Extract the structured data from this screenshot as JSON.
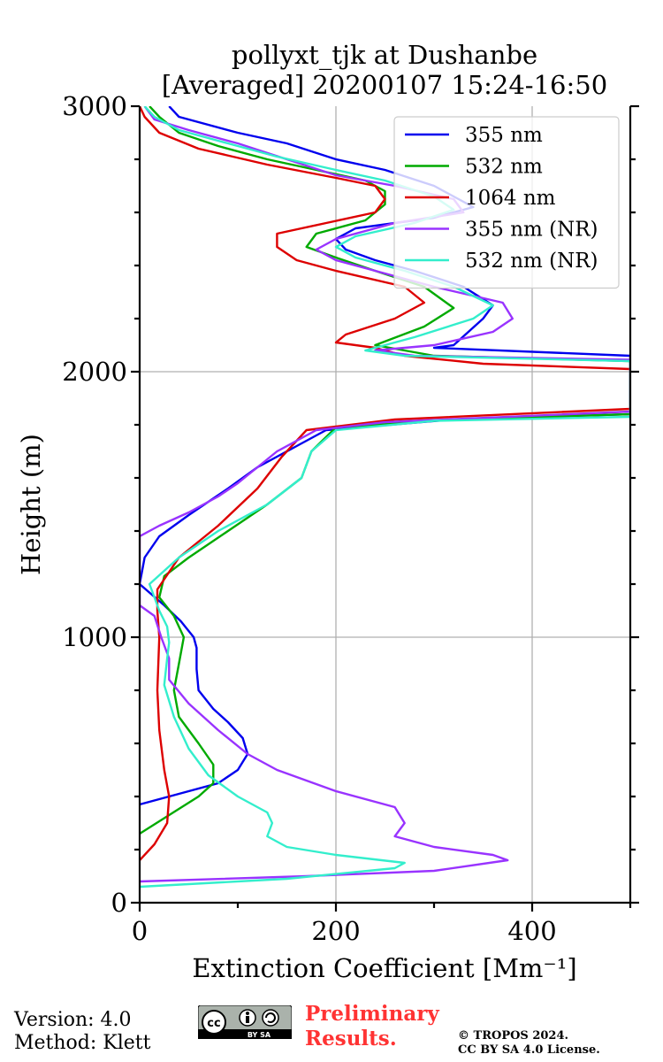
{
  "chart_data": {
    "type": "line",
    "title": "pollyxt_tjk at Dushanbe",
    "subtitle": "[Averaged] 20200107 15:24-16:50",
    "xlabel": "Extinction Coefficient [Mm⁻¹]",
    "ylabel": "Height (m)",
    "xlim": [
      0,
      500
    ],
    "ylim": [
      0,
      3000
    ],
    "xticks": [
      0,
      200,
      400
    ],
    "yticks": [
      0,
      1000,
      2000,
      3000
    ],
    "grid": true,
    "legend_position": "top-right",
    "series": [
      {
        "name": "355 nm",
        "color": "#0000ee",
        "points": [
          [
            0,
            370
          ],
          [
            40,
            410
          ],
          [
            80,
            450
          ],
          [
            100,
            500
          ],
          [
            110,
            560
          ],
          [
            105,
            620
          ],
          [
            90,
            680
          ],
          [
            75,
            730
          ],
          [
            60,
            800
          ],
          [
            58,
            880
          ],
          [
            58,
            960
          ],
          [
            55,
            1000
          ],
          [
            42,
            1060
          ],
          [
            25,
            1120
          ],
          [
            0,
            1200
          ],
          [
            0,
            1200
          ],
          [
            5,
            1300
          ],
          [
            20,
            1380
          ],
          [
            50,
            1460
          ],
          [
            90,
            1560
          ],
          [
            120,
            1640
          ],
          [
            160,
            1720
          ],
          [
            190,
            1780
          ],
          [
            320,
            1820
          ],
          [
            500,
            1840
          ],
          [
            500,
            2060
          ],
          [
            300,
            2090
          ],
          [
            320,
            2100
          ],
          [
            350,
            2200
          ],
          [
            360,
            2250
          ],
          [
            330,
            2320
          ],
          [
            280,
            2380
          ],
          [
            240,
            2420
          ],
          [
            210,
            2460
          ],
          [
            200,
            2500
          ],
          [
            220,
            2540
          ],
          [
            300,
            2580
          ],
          [
            340,
            2620
          ],
          [
            300,
            2700
          ],
          [
            250,
            2760
          ],
          [
            200,
            2800
          ],
          [
            150,
            2860
          ],
          [
            100,
            2900
          ],
          [
            40,
            2960
          ],
          [
            30,
            3000
          ]
        ]
      },
      {
        "name": "532 nm",
        "color": "#00aa00",
        "points": [
          [
            0,
            260
          ],
          [
            30,
            330
          ],
          [
            60,
            400
          ],
          [
            75,
            450
          ],
          [
            75,
            520
          ],
          [
            60,
            600
          ],
          [
            40,
            700
          ],
          [
            35,
            800
          ],
          [
            40,
            900
          ],
          [
            45,
            1000
          ],
          [
            35,
            1080
          ],
          [
            20,
            1150
          ],
          [
            25,
            1230
          ],
          [
            50,
            1300
          ],
          [
            90,
            1400
          ],
          [
            130,
            1500
          ],
          [
            165,
            1600
          ],
          [
            175,
            1700
          ],
          [
            200,
            1790
          ],
          [
            320,
            1820
          ],
          [
            500,
            1840
          ],
          [
            500,
            2040
          ],
          [
            300,
            2060
          ],
          [
            240,
            2100
          ],
          [
            290,
            2170
          ],
          [
            320,
            2240
          ],
          [
            290,
            2320
          ],
          [
            240,
            2380
          ],
          [
            200,
            2430
          ],
          [
            170,
            2470
          ],
          [
            180,
            2520
          ],
          [
            230,
            2570
          ],
          [
            250,
            2630
          ],
          [
            250,
            2680
          ],
          [
            230,
            2720
          ],
          [
            180,
            2760
          ],
          [
            130,
            2800
          ],
          [
            80,
            2850
          ],
          [
            40,
            2900
          ],
          [
            20,
            2960
          ],
          [
            10,
            3000
          ]
        ]
      },
      {
        "name": "1064 nm",
        "color": "#dd0000",
        "points": [
          [
            0,
            160
          ],
          [
            15,
            220
          ],
          [
            28,
            300
          ],
          [
            30,
            400
          ],
          [
            25,
            500
          ],
          [
            20,
            650
          ],
          [
            18,
            800
          ],
          [
            20,
            1000
          ],
          [
            18,
            1100
          ],
          [
            18,
            1180
          ],
          [
            40,
            1300
          ],
          [
            80,
            1420
          ],
          [
            120,
            1560
          ],
          [
            145,
            1680
          ],
          [
            170,
            1780
          ],
          [
            260,
            1820
          ],
          [
            500,
            1860
          ],
          [
            500,
            2010
          ],
          [
            350,
            2030
          ],
          [
            270,
            2060
          ],
          [
            240,
            2090
          ],
          [
            200,
            2110
          ],
          [
            210,
            2140
          ],
          [
            260,
            2200
          ],
          [
            290,
            2260
          ],
          [
            270,
            2320
          ],
          [
            200,
            2380
          ],
          [
            160,
            2420
          ],
          [
            140,
            2470
          ],
          [
            140,
            2520
          ],
          [
            190,
            2560
          ],
          [
            240,
            2600
          ],
          [
            250,
            2650
          ],
          [
            240,
            2700
          ],
          [
            200,
            2730
          ],
          [
            130,
            2780
          ],
          [
            60,
            2840
          ],
          [
            20,
            2900
          ],
          [
            5,
            2960
          ],
          [
            0,
            3000
          ]
        ]
      },
      {
        "name": "355 nm (NR)",
        "color": "#9933ff",
        "points": [
          [
            0,
            80
          ],
          [
            170,
            100
          ],
          [
            300,
            120
          ],
          [
            375,
            160
          ],
          [
            360,
            180
          ],
          [
            300,
            210
          ],
          [
            260,
            250
          ],
          [
            270,
            300
          ],
          [
            260,
            360
          ],
          [
            200,
            420
          ],
          [
            140,
            500
          ],
          [
            110,
            560
          ],
          [
            80,
            650
          ],
          [
            50,
            750
          ],
          [
            30,
            840
          ],
          [
            30,
            920
          ],
          [
            22,
            1000
          ],
          [
            15,
            1080
          ],
          [
            0,
            1120
          ],
          [
            0,
            1380
          ],
          [
            20,
            1420
          ],
          [
            50,
            1470
          ],
          [
            80,
            1530
          ],
          [
            100,
            1580
          ],
          [
            120,
            1640
          ],
          [
            140,
            1700
          ],
          [
            180,
            1780
          ],
          [
            250,
            1810
          ],
          [
            500,
            1850
          ],
          [
            500,
            2045
          ],
          [
            280,
            2060
          ],
          [
            240,
            2080
          ],
          [
            300,
            2100
          ],
          [
            360,
            2150
          ],
          [
            380,
            2200
          ],
          [
            370,
            2260
          ],
          [
            300,
            2320
          ],
          [
            240,
            2380
          ],
          [
            200,
            2420
          ],
          [
            180,
            2460
          ],
          [
            200,
            2500
          ],
          [
            260,
            2560
          ],
          [
            330,
            2600
          ],
          [
            320,
            2650
          ],
          [
            260,
            2700
          ],
          [
            200,
            2740
          ],
          [
            150,
            2800
          ],
          [
            100,
            2860
          ],
          [
            50,
            2910
          ],
          [
            15,
            2950
          ],
          [
            5,
            3000
          ]
        ]
      },
      {
        "name": "532 nm (NR)",
        "color": "#33eecc",
        "points": [
          [
            0,
            60
          ],
          [
            150,
            90
          ],
          [
            260,
            130
          ],
          [
            270,
            150
          ],
          [
            200,
            180
          ],
          [
            150,
            210
          ],
          [
            130,
            250
          ],
          [
            135,
            300
          ],
          [
            130,
            340
          ],
          [
            100,
            400
          ],
          [
            70,
            480
          ],
          [
            50,
            580
          ],
          [
            35,
            700
          ],
          [
            25,
            820
          ],
          [
            28,
            920
          ],
          [
            30,
            980
          ],
          [
            28,
            1040
          ],
          [
            20,
            1100
          ],
          [
            15,
            1150
          ],
          [
            10,
            1200
          ],
          [
            40,
            1300
          ],
          [
            80,
            1400
          ],
          [
            130,
            1500
          ],
          [
            165,
            1600
          ],
          [
            175,
            1700
          ],
          [
            200,
            1780
          ],
          [
            300,
            1815
          ],
          [
            500,
            1830
          ],
          [
            500,
            2040
          ],
          [
            270,
            2060
          ],
          [
            230,
            2080
          ],
          [
            280,
            2130
          ],
          [
            340,
            2200
          ],
          [
            360,
            2250
          ],
          [
            320,
            2320
          ],
          [
            270,
            2380
          ],
          [
            220,
            2430
          ],
          [
            200,
            2470
          ],
          [
            220,
            2510
          ],
          [
            280,
            2560
          ],
          [
            320,
            2610
          ],
          [
            300,
            2660
          ],
          [
            250,
            2720
          ],
          [
            200,
            2760
          ],
          [
            140,
            2810
          ],
          [
            90,
            2860
          ],
          [
            40,
            2910
          ],
          [
            15,
            2960
          ],
          [
            5,
            3000
          ]
        ]
      }
    ]
  },
  "footer": {
    "version": "Version: 4.0",
    "method": "Method: Klett",
    "prelim_line1": "Preliminary",
    "prelim_line2": "Results.",
    "copyright_line1": "© TROPOS 2024.",
    "copyright_line2": "CC BY SA 4.0 License.",
    "cc_badge_text": "BY SA"
  }
}
